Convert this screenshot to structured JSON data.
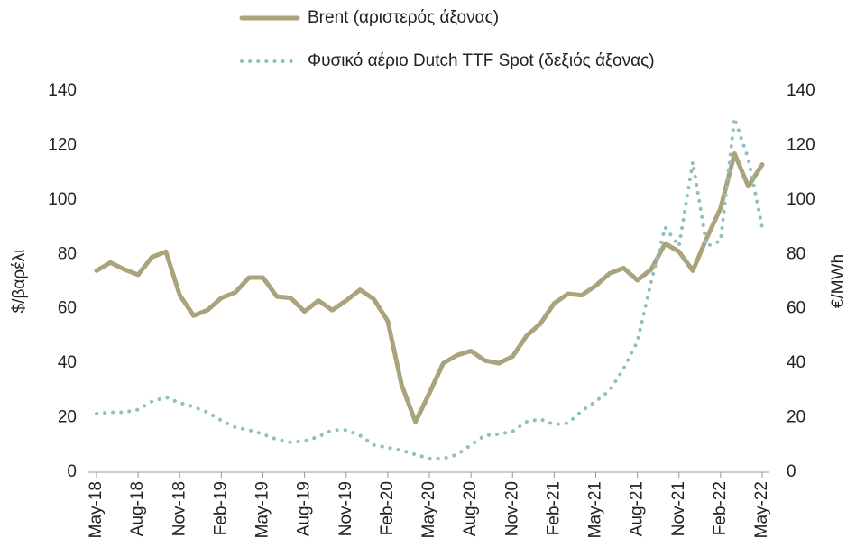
{
  "chart_data": {
    "type": "line",
    "categories": [
      "May-18",
      null,
      null,
      "Aug-18",
      null,
      null,
      "Nov-18",
      null,
      null,
      "Feb-19",
      null,
      null,
      "May-19",
      null,
      null,
      "Aug-19",
      null,
      null,
      "Nov-19",
      null,
      null,
      "Feb-20",
      null,
      null,
      "May-20",
      null,
      null,
      "Aug-20",
      null,
      null,
      "Nov-20",
      null,
      null,
      "Feb-21",
      null,
      null,
      "May-21",
      null,
      null,
      "Aug-21",
      null,
      null,
      "Nov-21",
      null,
      null,
      "Feb-22",
      null,
      null,
      "May-22"
    ],
    "series": [
      {
        "name": "Brent (αριστερός άξονας)",
        "color": "#aba37c",
        "axis": "y",
        "values": [
          74,
          77,
          74.5,
          72.5,
          79,
          81,
          65,
          57.5,
          59.5,
          64,
          66,
          71.5,
          71.5,
          64.5,
          64,
          59,
          63,
          59.5,
          63,
          67,
          63.5,
          55.5,
          32,
          18.5,
          29,
          40,
          43,
          44.5,
          41,
          40,
          42.5,
          50,
          54.5,
          62,
          65.5,
          65,
          68.5,
          73,
          75,
          70.5,
          74.5,
          84,
          81,
          74,
          86,
          97,
          117,
          105,
          113
        ]
      },
      {
        "name": "Φυσικό αέριο Dutch TTF Spot (δεξιός άξονας)",
        "color": "#8fbfbf",
        "axis": "y2",
        "values": [
          21.5,
          22,
          22,
          23,
          26,
          27.5,
          25.5,
          24,
          22,
          19,
          16.5,
          15.5,
          14,
          12,
          11,
          11.5,
          13,
          15.5,
          15.5,
          13.5,
          10,
          9,
          8,
          6.5,
          5,
          5,
          6.5,
          10,
          13.5,
          14,
          15,
          18.5,
          19.5,
          17.5,
          18,
          22.5,
          26,
          30,
          38,
          48,
          70,
          90,
          83,
          114,
          83,
          85,
          130,
          115,
          90
        ]
      }
    ],
    "ylabel": "$/βαρέλι",
    "y2label": "€/MWh",
    "ylim": [
      0,
      140
    ],
    "yticks": [
      0,
      20,
      40,
      60,
      80,
      100,
      120,
      140
    ],
    "y2lim": [
      0,
      140
    ],
    "y2ticks": [
      0,
      20,
      40,
      60,
      80,
      100,
      120,
      140
    ],
    "legend": "top"
  }
}
